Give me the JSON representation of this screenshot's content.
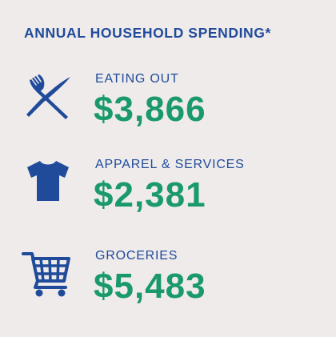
{
  "title": "ANNUAL HOUSEHOLD SPENDING*",
  "colors": {
    "background": "#efebeb",
    "heading": "#1f4b9a",
    "value": "#1a9a6a"
  },
  "items": [
    {
      "icon": "fork-knife-icon",
      "label": "EATING OUT",
      "value": "$3,866"
    },
    {
      "icon": "tshirt-icon",
      "label": "APPAREL & SERVICES",
      "value": "$2,381"
    },
    {
      "icon": "shopping-cart-icon",
      "label": "GROCERIES",
      "value": "$5,483"
    }
  ]
}
